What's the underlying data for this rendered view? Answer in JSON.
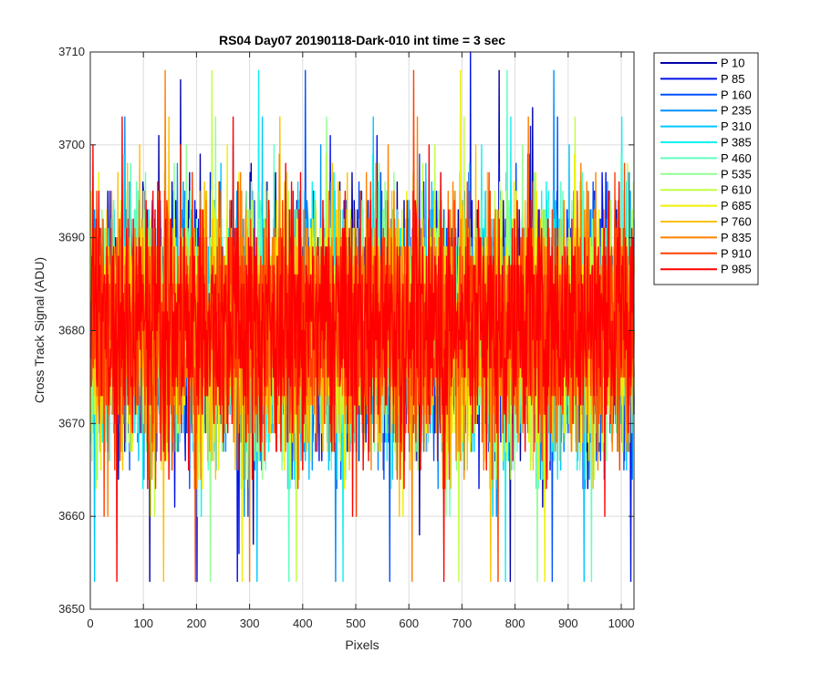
{
  "chart_data": {
    "type": "line",
    "title": "RS04 Day07 20190118-Dark-010 int time = 3 sec",
    "xlabel": "Pixels",
    "ylabel": "Cross Track Signal (ADU)",
    "xlim": [
      0,
      1024
    ],
    "ylim": [
      3650,
      3710
    ],
    "xticks": [
      0,
      100,
      200,
      300,
      400,
      500,
      600,
      700,
      800,
      900,
      1000
    ],
    "yticks": [
      3650,
      3660,
      3670,
      3680,
      3690,
      3700,
      3710
    ],
    "grid": true,
    "legend_position": "outside-top-right",
    "x_range": [
      1,
      1024
    ],
    "noise": {
      "mean": 3681,
      "typical_min": 3662,
      "typical_max": 3701,
      "observed_min": 3653,
      "observed_max": 3710
    },
    "series": [
      {
        "name": "P 10",
        "color": "#0000a8"
      },
      {
        "name": "P 85",
        "color": "#0010e8"
      },
      {
        "name": "P 160",
        "color": "#0050ff"
      },
      {
        "name": "P 235",
        "color": "#0090ff"
      },
      {
        "name": "P 310",
        "color": "#00c8ff"
      },
      {
        "name": "P 385",
        "color": "#10f0f0"
      },
      {
        "name": "P 460",
        "color": "#60ffc0"
      },
      {
        "name": "P 535",
        "color": "#90ff90"
      },
      {
        "name": "P 610",
        "color": "#c0ff40"
      },
      {
        "name": "P 685",
        "color": "#f0f000"
      },
      {
        "name": "P 760",
        "color": "#ffc000"
      },
      {
        "name": "P 835",
        "color": "#ff8000"
      },
      {
        "name": "P 910",
        "color": "#ff4000"
      },
      {
        "name": "P 985",
        "color": "#ff0000"
      }
    ]
  }
}
